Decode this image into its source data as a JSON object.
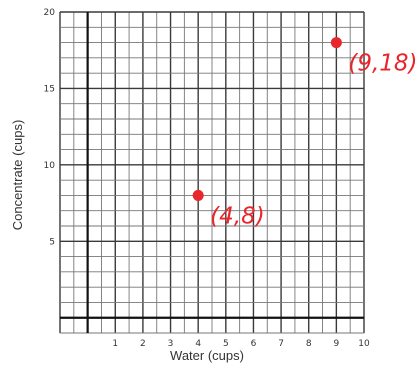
{
  "chart_data": {
    "type": "scatter",
    "title": "",
    "xlabel": "Water (cups)",
    "ylabel": "Concentrate (cups)",
    "xlim": [
      -1,
      10
    ],
    "ylim": [
      -1,
      20
    ],
    "x_minor_step": 0.5,
    "y_minor_step": 1,
    "x_ticks": [
      1,
      2,
      3,
      4,
      5,
      6,
      7,
      8,
      9,
      10
    ],
    "y_ticks": [
      5,
      10,
      15,
      20
    ],
    "grid": true,
    "series": [
      {
        "color": "#e8262c",
        "points": [
          {
            "x": 4,
            "y": 8,
            "label": "(4,8)"
          },
          {
            "x": 9,
            "y": 18,
            "label": "(9,18)"
          }
        ]
      }
    ]
  }
}
